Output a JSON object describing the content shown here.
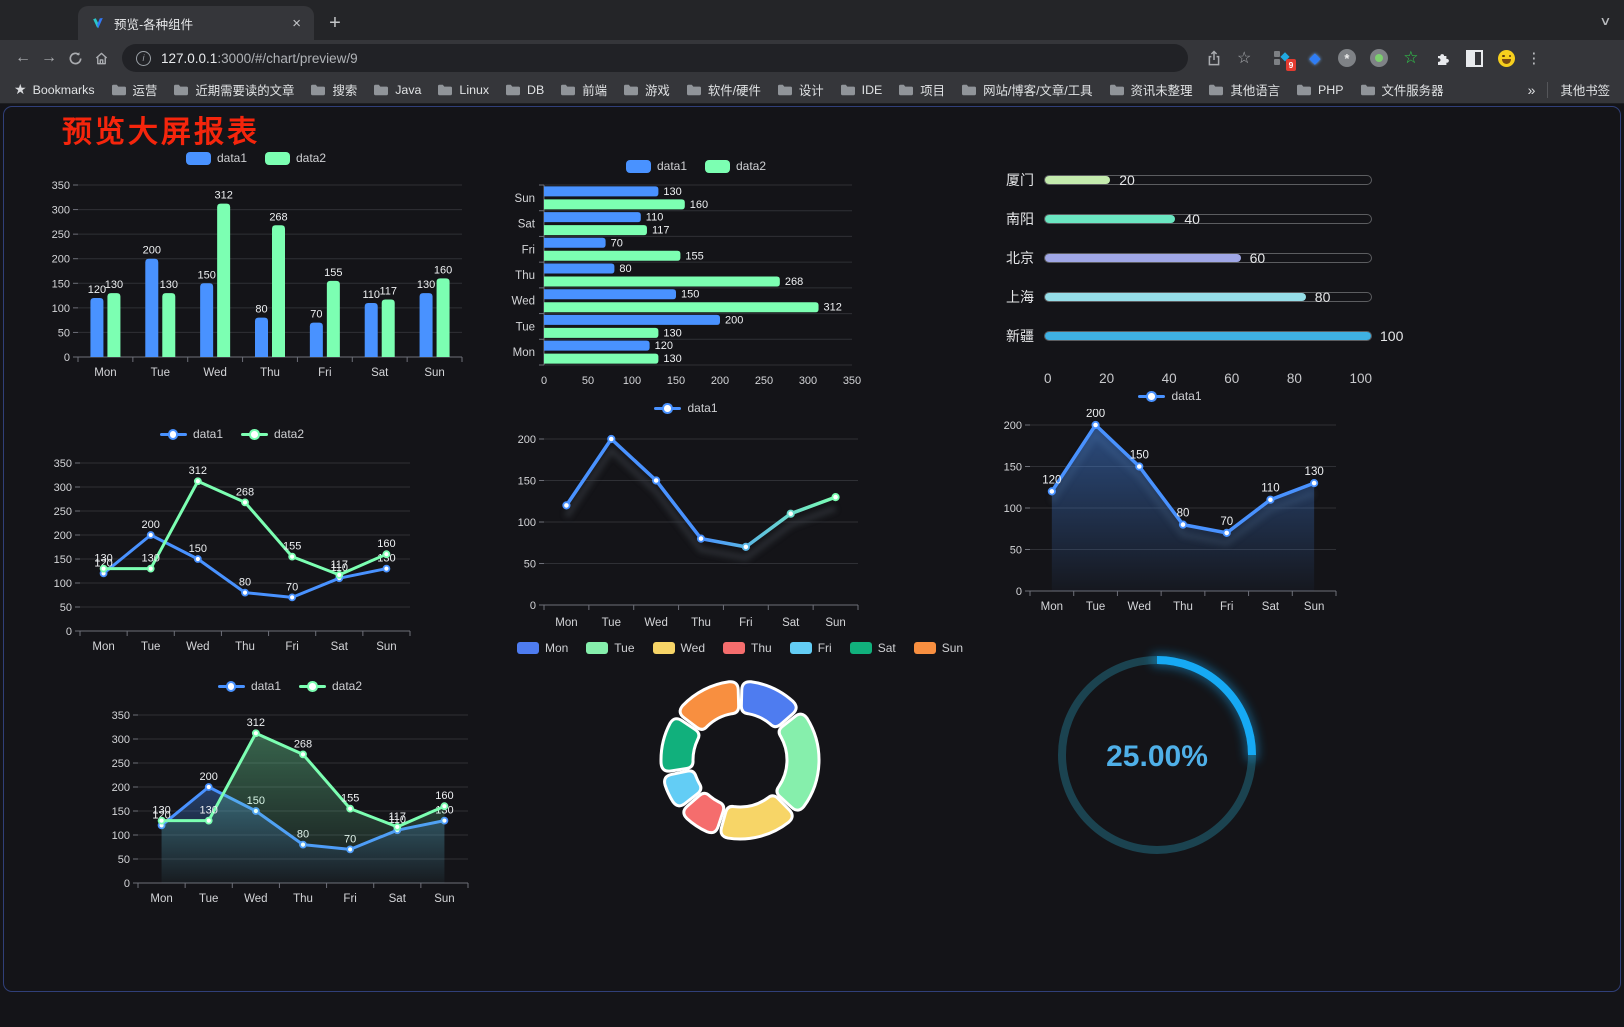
{
  "browser": {
    "traffic_lights": [
      "#ff5f57",
      "#febc2e",
      "#28c840"
    ],
    "tab": {
      "title": "预览-各种组件"
    },
    "icons": {
      "back": "←",
      "forward": "→",
      "close": "×",
      "new_tab": "+",
      "tab_chevron": "∨",
      "more": "⋮",
      "star": "☆",
      "bookmarks_star": "★",
      "overflow": "»",
      "info": "i",
      "gem": "◆",
      "asterisk": "*",
      "green_star": "☆",
      "diamond": "◆"
    },
    "nav": {
      "url_host": "127.0.0.1",
      "url_rest": ":3000/#/chart/preview/9"
    },
    "extensions": {
      "badge": "9"
    },
    "bookmarks": {
      "star_label": "Bookmarks",
      "items": [
        "运营",
        "近期需要读的文章",
        "搜索",
        "Java",
        "Linux",
        "DB",
        "前端",
        "游戏",
        "软件/硬件",
        "设计",
        "IDE",
        "项目",
        "网站/博客/文章/工具",
        "资讯未整理",
        "其他语言",
        "PHP",
        "文件服务器"
      ],
      "overflow": "»",
      "other": "其他书签"
    }
  },
  "page": {
    "title": "预览大屏报表",
    "title_color": "#f5250c",
    "background": "#141418"
  },
  "chart_data": [
    {
      "id": "bar-grouped",
      "type": "bar",
      "legend": [
        {
          "label": "data1",
          "color": "#4992ff"
        },
        {
          "label": "data2",
          "color": "#7cffb2"
        }
      ],
      "categories": [
        "Mon",
        "Tue",
        "Wed",
        "Thu",
        "Fri",
        "Sat",
        "Sun"
      ],
      "series": [
        {
          "name": "data1",
          "color": "#4992ff",
          "values": [
            120,
            200,
            150,
            80,
            70,
            110,
            130
          ]
        },
        {
          "name": "data2",
          "color": "#7cffb2",
          "values": [
            130,
            130,
            312,
            268,
            155,
            117,
            160
          ]
        }
      ],
      "ylim": [
        0,
        350
      ],
      "ystep": 50,
      "grid": true,
      "legend_position": "top"
    },
    {
      "id": "bar-horizontal",
      "type": "bar",
      "orientation": "horizontal",
      "legend": [
        {
          "label": "data1",
          "color": "#4992ff"
        },
        {
          "label": "data2",
          "color": "#7cffb2"
        }
      ],
      "categories": [
        "Mon",
        "Tue",
        "Wed",
        "Thu",
        "Fri",
        "Sat",
        "Sun"
      ],
      "series": [
        {
          "name": "data1",
          "color": "#4992ff",
          "values": [
            120,
            200,
            150,
            80,
            70,
            110,
            130
          ]
        },
        {
          "name": "data2",
          "color": "#7cffb2",
          "values": [
            130,
            130,
            312,
            268,
            155,
            117,
            160
          ]
        }
      ],
      "xlim": [
        0,
        350
      ],
      "xstep": 50,
      "grid": true,
      "legend_position": "top"
    },
    {
      "id": "progress-bars",
      "type": "bar",
      "variant": "progress-list",
      "items": [
        {
          "label": "厦门",
          "value": 20,
          "color": "#c4ebad"
        },
        {
          "label": "南阳",
          "value": 40,
          "color": "#6be6c1"
        },
        {
          "label": "北京",
          "value": 60,
          "color": "#a0a7e6"
        },
        {
          "label": "上海",
          "value": 80,
          "color": "#96dee8"
        },
        {
          "label": "新疆",
          "value": 100,
          "color": "#3fb1e3"
        }
      ],
      "xlim": [
        0,
        100
      ],
      "axis_ticks": [
        0,
        20,
        40,
        60,
        80,
        100
      ]
    },
    {
      "id": "line-two",
      "type": "line",
      "legend": [
        {
          "label": "data1",
          "color": "#4992ff"
        },
        {
          "label": "data2",
          "color": "#7cffb2"
        }
      ],
      "categories": [
        "Mon",
        "Tue",
        "Wed",
        "Thu",
        "Fri",
        "Sat",
        "Sun"
      ],
      "series": [
        {
          "name": "data1",
          "color": "#4992ff",
          "values": [
            120,
            200,
            150,
            80,
            70,
            110,
            130
          ]
        },
        {
          "name": "data2",
          "color": "#7cffb2",
          "values": [
            130,
            130,
            312,
            268,
            155,
            117,
            160
          ]
        }
      ],
      "ylim": [
        0,
        350
      ],
      "ystep": 50,
      "labels": true,
      "fill": false,
      "legend_position": "top"
    },
    {
      "id": "line-gradient",
      "type": "line",
      "variant": "gradient-stroke",
      "legend": [
        {
          "label": "data1",
          "color": "#4992ff"
        }
      ],
      "categories": [
        "Mon",
        "Tue",
        "Wed",
        "Thu",
        "Fri",
        "Sat",
        "Sun"
      ],
      "series": [
        {
          "name": "data1",
          "colors": [
            "#4992ff",
            "#7cffb2"
          ],
          "values": [
            120,
            200,
            150,
            80,
            70,
            110,
            130
          ]
        }
      ],
      "ylim": [
        0,
        200
      ],
      "ystep": 50,
      "labels": false,
      "legend_position": "top"
    },
    {
      "id": "area-single",
      "type": "area",
      "legend": [
        {
          "label": "data1",
          "color": "#4992ff"
        }
      ],
      "categories": [
        "Mon",
        "Tue",
        "Wed",
        "Thu",
        "Fri",
        "Sat",
        "Sun"
      ],
      "series": [
        {
          "name": "data1",
          "color": "#4992ff",
          "values": [
            120,
            200,
            150,
            80,
            70,
            110,
            130
          ]
        }
      ],
      "ylim": [
        0,
        200
      ],
      "ystep": 50,
      "labels": true,
      "legend_position": "top"
    },
    {
      "id": "line-two-area",
      "type": "area",
      "legend": [
        {
          "label": "data1",
          "color": "#4992ff"
        },
        {
          "label": "data2",
          "color": "#7cffb2"
        }
      ],
      "categories": [
        "Mon",
        "Tue",
        "Wed",
        "Thu",
        "Fri",
        "Sat",
        "Sun"
      ],
      "series": [
        {
          "name": "data1",
          "color": "#4992ff",
          "values": [
            120,
            200,
            150,
            80,
            70,
            110,
            130
          ]
        },
        {
          "name": "data2",
          "color": "#7cffb2",
          "values": [
            130,
            130,
            312,
            268,
            155,
            117,
            160
          ]
        }
      ],
      "ylim": [
        0,
        350
      ],
      "ystep": 50,
      "labels": true,
      "fill": true,
      "legend_position": "top"
    },
    {
      "id": "donut",
      "type": "pie",
      "inner_radius_ratio": 0.6,
      "items": [
        {
          "label": "Mon",
          "value": 120,
          "color": "#4e7cf0"
        },
        {
          "label": "Tue",
          "value": 200,
          "color": "#86efac"
        },
        {
          "label": "Wed",
          "value": 150,
          "color": "#f7d567"
        },
        {
          "label": "Thu",
          "value": 80,
          "color": "#f56d6d"
        },
        {
          "label": "Fri",
          "value": 70,
          "color": "#63cdf5"
        },
        {
          "label": "Sat",
          "value": 110,
          "color": "#11b07c"
        },
        {
          "label": "Sun",
          "value": 130,
          "color": "#f88f40"
        }
      ],
      "legend_position": "top",
      "border_color": "#ffffff"
    },
    {
      "id": "ring",
      "type": "ring",
      "percent": 25,
      "value_label": "25.00%",
      "color": "#16a9f4",
      "track_color": "#1b4350",
      "text_color": "#4fb0e8"
    }
  ]
}
